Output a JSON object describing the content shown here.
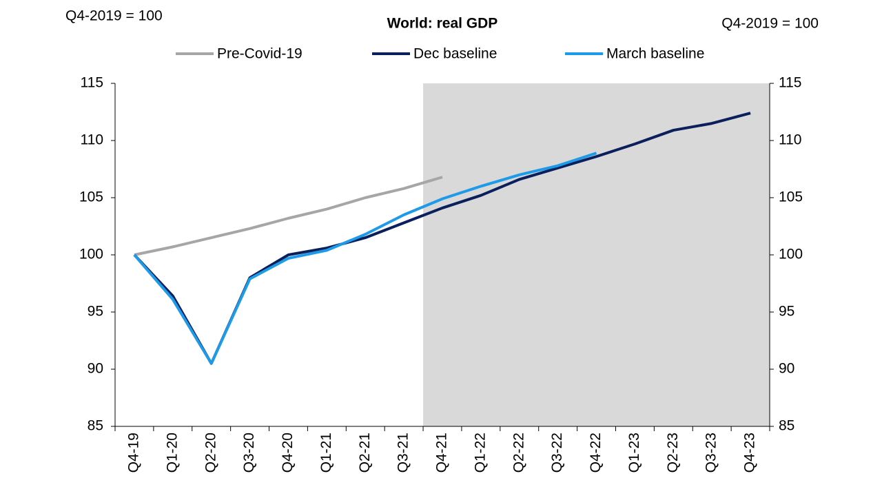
{
  "chart_data": {
    "type": "line",
    "title": "World: real GDP",
    "left_axis_label": "Q4-2019 = 100",
    "right_axis_label": "Q4-2019 = 100",
    "categories": [
      "Q4-19",
      "Q1-20",
      "Q2-20",
      "Q3-20",
      "Q4-20",
      "Q1-21",
      "Q2-21",
      "Q3-21",
      "Q4-21",
      "Q1-22",
      "Q2-22",
      "Q3-22",
      "Q4-22",
      "Q1-23",
      "Q2-23",
      "Q3-23",
      "Q4-23"
    ],
    "series": [
      {
        "name": "Pre-Covid-19",
        "color": "#a6a6a6",
        "values": [
          100,
          100.7,
          101.5,
          102.3,
          103.2,
          104.0,
          105.0,
          105.8,
          106.8,
          null,
          null,
          null,
          null,
          null,
          null,
          null,
          null
        ]
      },
      {
        "name": "Dec baseline",
        "color": "#0a1f5c",
        "values": [
          100,
          96.4,
          90.5,
          98.0,
          100.0,
          100.6,
          101.5,
          102.8,
          104.1,
          105.2,
          106.6,
          107.6,
          108.6,
          109.7,
          110.9,
          111.5,
          112.4
        ]
      },
      {
        "name": "March baseline",
        "color": "#1e9be8",
        "values": [
          100,
          96.1,
          90.5,
          97.9,
          99.7,
          100.4,
          101.8,
          103.5,
          104.9,
          106.0,
          107.0,
          107.8,
          108.9,
          null,
          null,
          null,
          null
        ]
      }
    ],
    "ylim": [
      85,
      115
    ],
    "yticks": [
      85,
      90,
      95,
      100,
      105,
      110,
      115
    ],
    "y2lim": [
      85,
      115
    ],
    "y2ticks": [
      85,
      90,
      95,
      100,
      105,
      110,
      115
    ],
    "shaded_from_index": 8,
    "shade_color": "#d9d9d9",
    "grid": false,
    "legend": "top"
  }
}
